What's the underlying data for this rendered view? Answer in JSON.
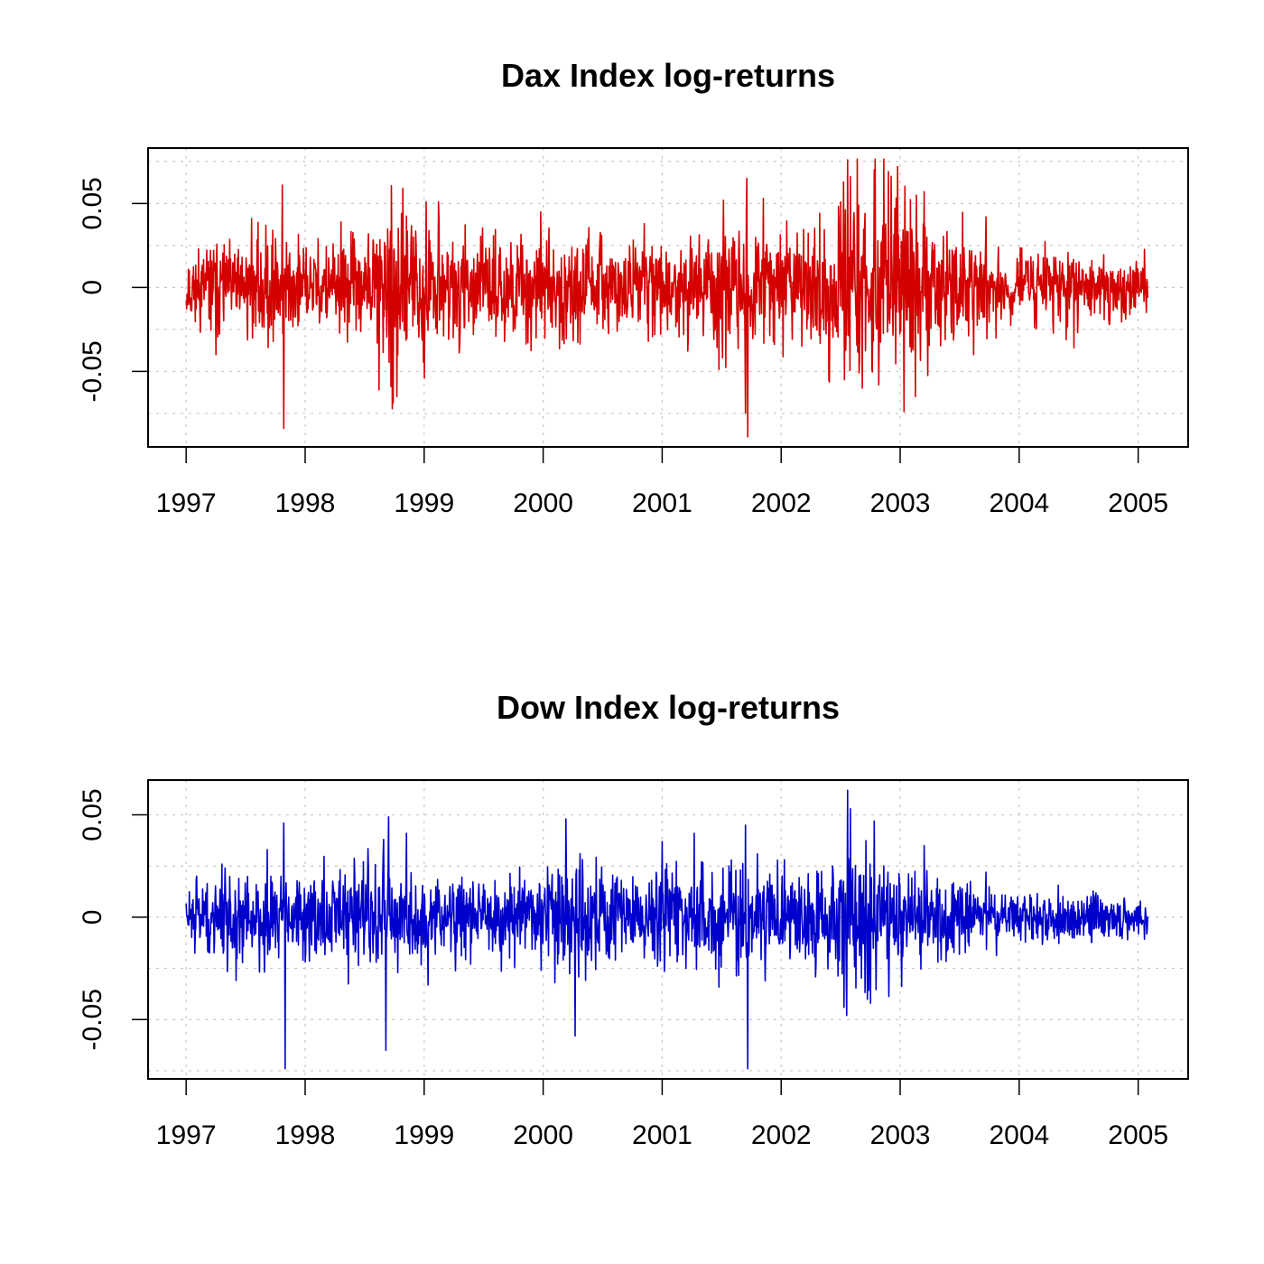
{
  "chart_data": [
    {
      "type": "line",
      "title": "Dax Index log-returns",
      "xlabel": "",
      "ylabel": "",
      "x_range": [
        1996.68,
        2005.42
      ],
      "ylim": [
        -0.095,
        0.083
      ],
      "x_ticks": [
        1997,
        1998,
        1999,
        2000,
        2001,
        2002,
        2003,
        2004,
        2005
      ],
      "x_tick_labels": [
        "1997",
        "1998",
        "1999",
        "2000",
        "2001",
        "2002",
        "2003",
        "2004",
        "2005"
      ],
      "y_ticks": [
        -0.05,
        0,
        0.05
      ],
      "y_tick_labels": [
        "-0.05",
        "0",
        "0.05"
      ],
      "grid": true,
      "color": "#d40000",
      "series": [
        {
          "x_start": 1997.0,
          "x_end": 2005.08,
          "approx_points": 2100,
          "volatility": [
            [
              1997.0,
              0.011
            ],
            [
              1997.5,
              0.013
            ],
            [
              1997.75,
              0.017
            ],
            [
              1998.0,
              0.012
            ],
            [
              1998.5,
              0.013
            ],
            [
              1998.65,
              0.025
            ],
            [
              1999.0,
              0.02
            ],
            [
              1999.3,
              0.014
            ],
            [
              1999.8,
              0.013
            ],
            [
              2000.0,
              0.016
            ],
            [
              2000.5,
              0.013
            ],
            [
              2001.0,
              0.013
            ],
            [
              2001.3,
              0.016
            ],
            [
              2001.7,
              0.021
            ],
            [
              2002.0,
              0.015
            ],
            [
              2002.4,
              0.022
            ],
            [
              2002.7,
              0.03
            ],
            [
              2003.0,
              0.026
            ],
            [
              2003.3,
              0.02
            ],
            [
              2003.6,
              0.013
            ],
            [
              2004.0,
              0.011
            ],
            [
              2004.5,
              0.009
            ],
            [
              2005.08,
              0.008
            ]
          ],
          "extremes": [
            [
              1997.25,
              -0.04
            ],
            [
              1997.55,
              0.041
            ],
            [
              1997.81,
              0.061
            ],
            [
              1997.82,
              -0.084
            ],
            [
              1998.3,
              0.039
            ],
            [
              1998.62,
              -0.061
            ],
            [
              1998.72,
              -0.059
            ],
            [
              1998.77,
              -0.065
            ],
            [
              1998.82,
              0.059
            ],
            [
              1999.0,
              -0.054
            ],
            [
              1999.12,
              0.051
            ],
            [
              1999.3,
              -0.035
            ],
            [
              1999.98,
              0.045
            ],
            [
              2000.85,
              0.038
            ],
            [
              2001.7,
              -0.075
            ],
            [
              2001.71,
              0.065
            ],
            [
              2001.72,
              -0.089
            ],
            [
              2001.85,
              0.053
            ],
            [
              2002.5,
              0.051
            ],
            [
              2002.53,
              -0.055
            ],
            [
              2002.56,
              0.076
            ],
            [
              2002.58,
              0.066
            ],
            [
              2002.68,
              -0.06
            ],
            [
              2002.78,
              0.07
            ],
            [
              2002.82,
              -0.058
            ],
            [
              2002.9,
              0.069
            ],
            [
              2002.98,
              0.072
            ],
            [
              2003.13,
              -0.065
            ],
            [
              2003.2,
              0.057
            ],
            [
              2003.72,
              0.042
            ],
            [
              2004.46,
              -0.036
            ]
          ]
        }
      ]
    },
    {
      "type": "line",
      "title": "Dow Index log-returns",
      "xlabel": "",
      "ylabel": "",
      "x_range": [
        1996.68,
        2005.42
      ],
      "ylim": [
        -0.079,
        0.067
      ],
      "x_ticks": [
        1997,
        1998,
        1999,
        2000,
        2001,
        2002,
        2003,
        2004,
        2005
      ],
      "x_tick_labels": [
        "1997",
        "1998",
        "1999",
        "2000",
        "2001",
        "2002",
        "2003",
        "2004",
        "2005"
      ],
      "y_ticks": [
        -0.05,
        0,
        0.05
      ],
      "y_tick_labels": [
        "-0.05",
        "0",
        "0.05"
      ],
      "grid": true,
      "color": "#0000cc",
      "series": [
        {
          "x_start": 1997.0,
          "x_end": 2005.08,
          "approx_points": 2100,
          "volatility": [
            [
              1997.0,
              0.008
            ],
            [
              1997.3,
              0.01
            ],
            [
              1997.8,
              0.011
            ],
            [
              1998.0,
              0.009
            ],
            [
              1998.6,
              0.015
            ],
            [
              1998.8,
              0.011
            ],
            [
              1999.5,
              0.009
            ],
            [
              2000.0,
              0.011
            ],
            [
              2000.3,
              0.013
            ],
            [
              2000.6,
              0.01
            ],
            [
              2001.0,
              0.012
            ],
            [
              2001.3,
              0.012
            ],
            [
              2001.7,
              0.013
            ],
            [
              2002.0,
              0.01
            ],
            [
              2002.5,
              0.016
            ],
            [
              2002.7,
              0.017
            ],
            [
              2003.0,
              0.013
            ],
            [
              2003.3,
              0.01
            ],
            [
              2003.6,
              0.007
            ],
            [
              2004.0,
              0.006
            ],
            [
              2005.08,
              0.005
            ]
          ],
          "extremes": [
            [
              1997.3,
              0.026
            ],
            [
              1997.68,
              0.033
            ],
            [
              1997.82,
              0.046
            ],
            [
              1997.83,
              -0.074
            ],
            [
              1998.66,
              0.038
            ],
            [
              1998.68,
              -0.065
            ],
            [
              1998.7,
              0.049
            ],
            [
              1998.85,
              0.041
            ],
            [
              2000.19,
              0.048
            ],
            [
              2000.27,
              -0.058
            ],
            [
              2000.1,
              -0.032
            ],
            [
              2001.0,
              0.037
            ],
            [
              2001.2,
              -0.025
            ],
            [
              2001.27,
              0.041
            ],
            [
              2001.7,
              0.045
            ],
            [
              2001.72,
              -0.074
            ],
            [
              2002.55,
              -0.048
            ],
            [
              2002.56,
              0.062
            ],
            [
              2002.58,
              0.053
            ],
            [
              2002.75,
              -0.042
            ],
            [
              2002.78,
              0.047
            ],
            [
              2003.2,
              0.035
            ],
            [
              2003.72,
              0.022
            ]
          ]
        }
      ]
    }
  ]
}
